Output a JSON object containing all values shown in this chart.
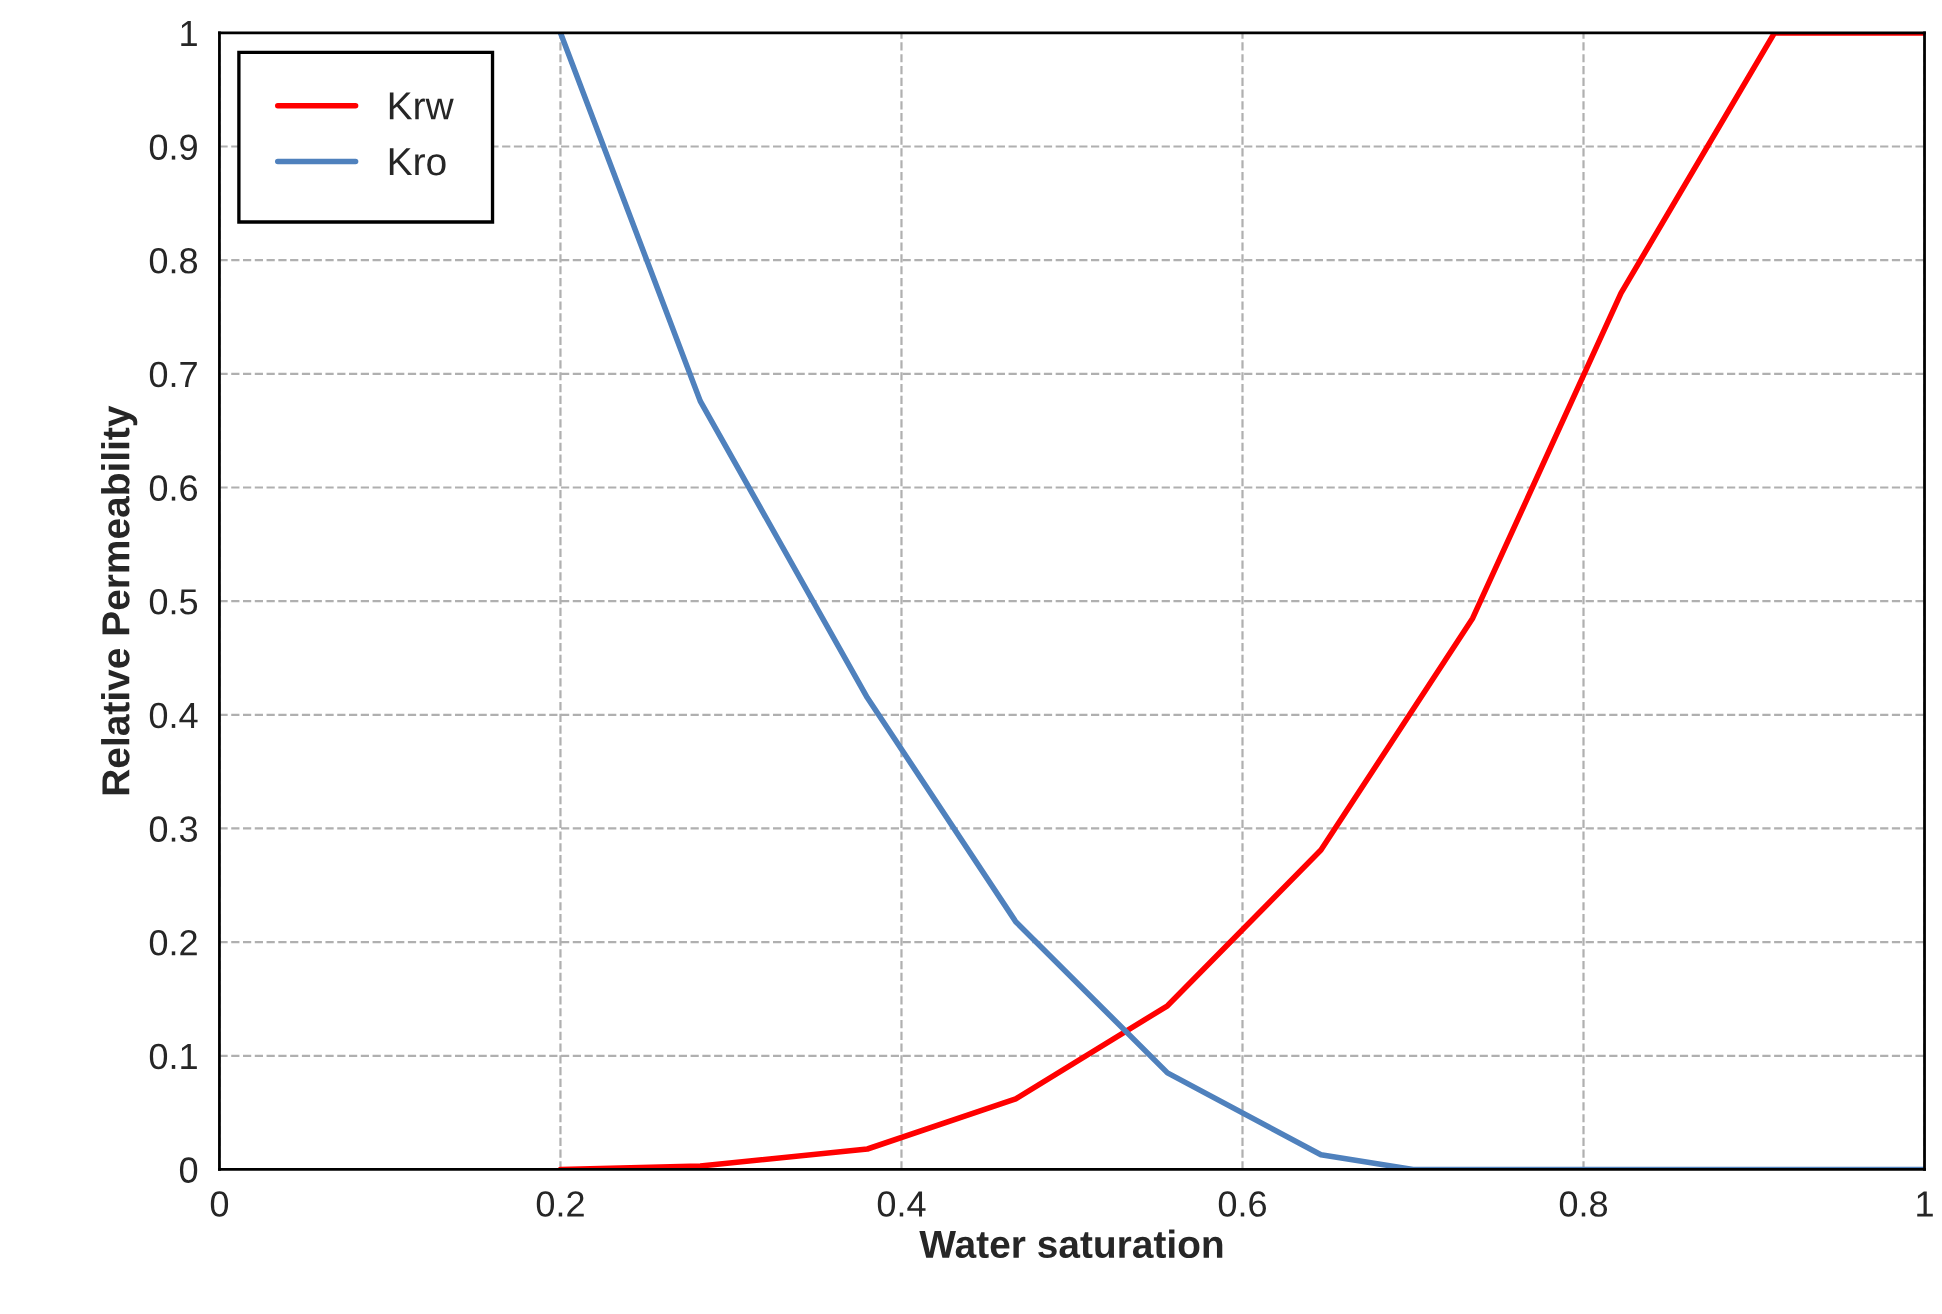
{
  "chart_data": {
    "type": "line",
    "xlabel": "Water saturation",
    "ylabel": "Relative Permeability",
    "series": [
      {
        "name": "Krw",
        "color": "#ff0000",
        "x": [
          0.2,
          0.282,
          0.38,
          0.467,
          0.556,
          0.646,
          0.735,
          0.822,
          0.912,
          1.0
        ],
        "values": [
          0,
          0.003,
          0.018,
          0.062,
          0.144,
          0.281,
          0.485,
          0.771,
          1.0,
          1.0
        ]
      },
      {
        "name": "Kro",
        "color": "#4f81bd",
        "x": [
          0.2,
          0.282,
          0.38,
          0.467,
          0.556,
          0.646,
          0.7,
          1.0
        ],
        "values": [
          1.0,
          0.676,
          0.415,
          0.218,
          0.085,
          0.013,
          0,
          0
        ]
      }
    ],
    "xlim": [
      0,
      1
    ],
    "ylim": [
      0,
      1
    ],
    "xticks": [
      0,
      0.2,
      0.4,
      0.6,
      0.8,
      1
    ],
    "yticks": [
      0,
      0.1,
      0.2,
      0.3,
      0.4,
      0.5,
      0.6,
      0.7,
      0.8,
      0.9,
      1
    ],
    "grid": true,
    "legend": "top left",
    "marker": "none",
    "line_style": "solid"
  }
}
